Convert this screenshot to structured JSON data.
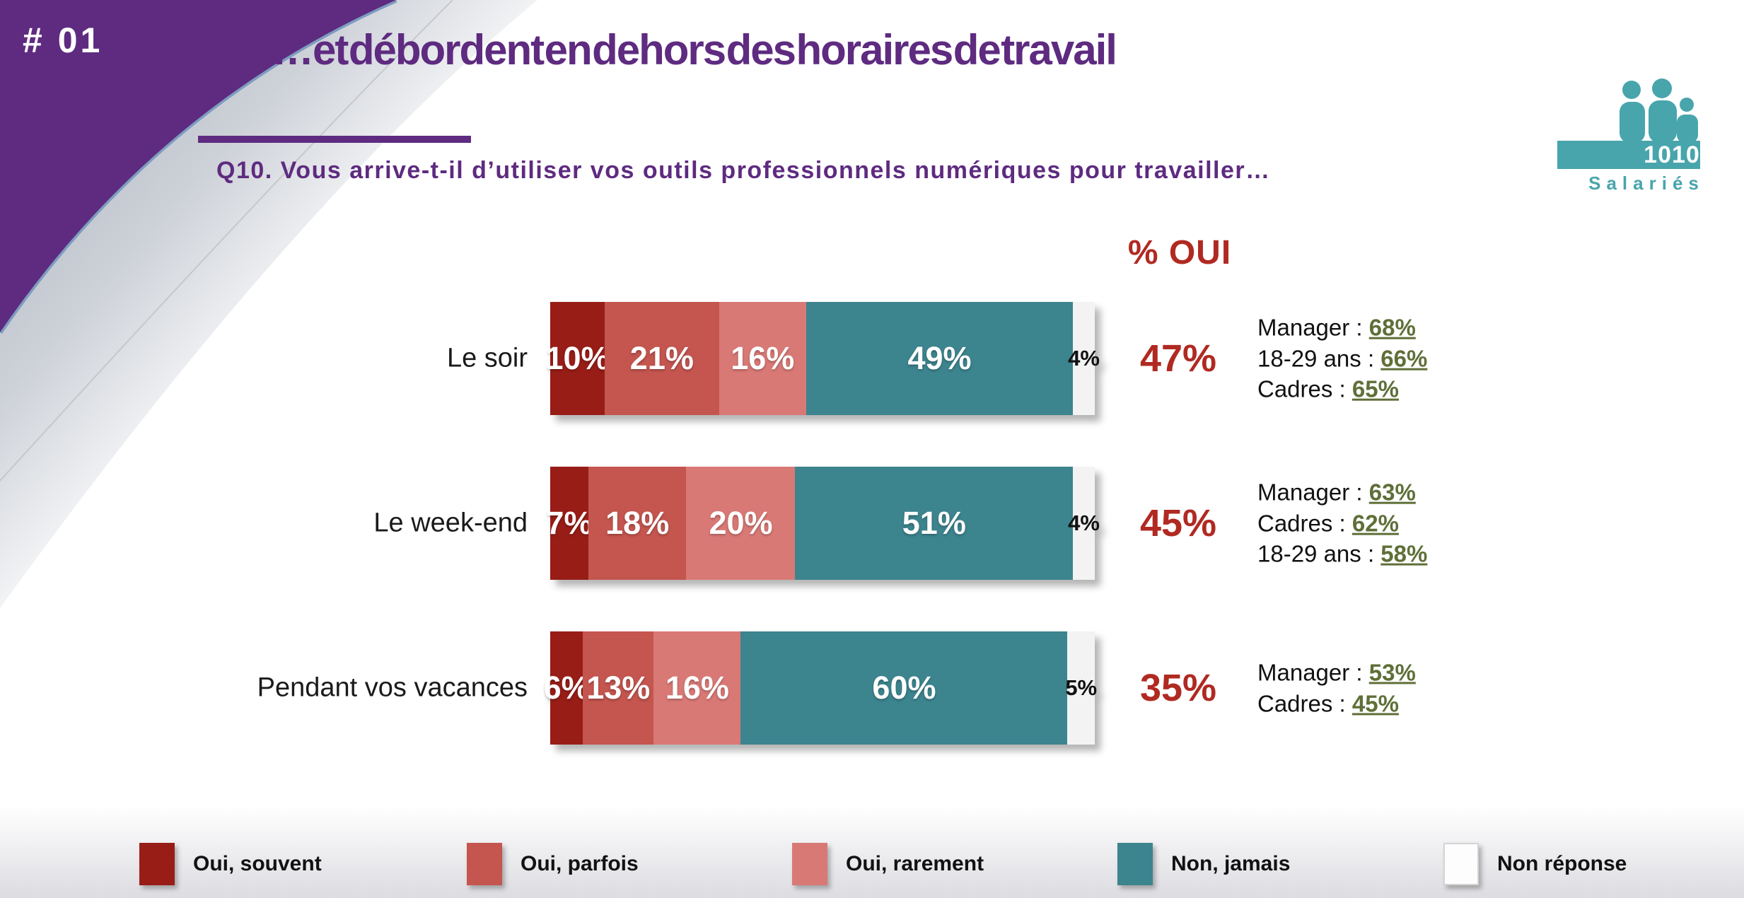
{
  "slide": {
    "badge": "# 01",
    "title": "…et débordent en dehors des horaires de travail",
    "question": "Q10. Vous arrive-t-il d’utiliser vos outils professionnels numériques pour travailler…",
    "oui_header": "% OUI"
  },
  "logo": {
    "number": "1010",
    "label": "Salariés"
  },
  "colors": {
    "purple": "#5E2B80",
    "red": "#B02A22",
    "green": "#5F6F38",
    "teal": "#48A5AC"
  },
  "chart_data": {
    "type": "bar",
    "stacked": true,
    "orientation": "horizontal",
    "unit": "%",
    "xlim": [
      0,
      100
    ],
    "grid": false,
    "legend_position": "bottom",
    "categories": [
      "Le soir",
      "Le week-end",
      "Pendant vos vacances"
    ],
    "series": [
      {
        "name": "Oui, souvent",
        "color": "#981D17",
        "values": [
          10,
          7,
          6
        ]
      },
      {
        "name": "Oui, parfois",
        "color": "#C4554F",
        "values": [
          21,
          18,
          13
        ]
      },
      {
        "name": "Oui, rarement",
        "color": "#D97976",
        "values": [
          16,
          20,
          16
        ]
      },
      {
        "name": "Non, jamais",
        "color": "#3C848E",
        "values": [
          49,
          51,
          60
        ]
      },
      {
        "name": "Non réponse",
        "color": "#F3F3F3",
        "values": [
          4,
          4,
          5
        ],
        "outline": true
      }
    ],
    "pct_oui": [
      47,
      45,
      35
    ],
    "annotation_separator": " : ",
    "annotations": [
      [
        {
          "label": "Manager",
          "value": "68%"
        },
        {
          "label": "18-29 ans",
          "value": "66%"
        },
        {
          "label": "Cadres",
          "value": "65%"
        }
      ],
      [
        {
          "label": "Manager",
          "value": "63%"
        },
        {
          "label": "Cadres",
          "value": "62%"
        },
        {
          "label": "18-29 ans",
          "value": "58%"
        }
      ],
      [
        {
          "label": "Manager",
          "value": "53%"
        },
        {
          "label": "Cadres",
          "value": "45%"
        }
      ]
    ]
  }
}
